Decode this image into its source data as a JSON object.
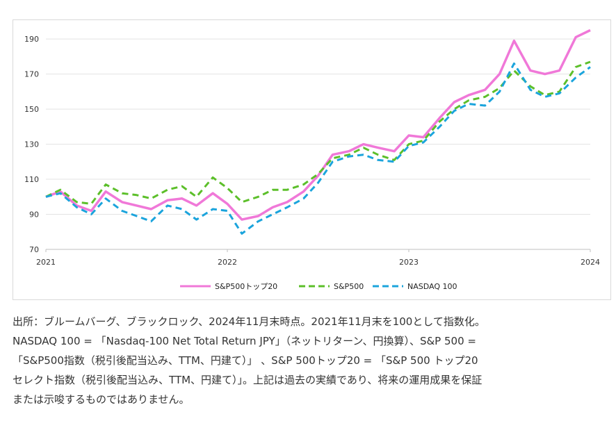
{
  "chart_data": {
    "type": "line",
    "x_ticks": [
      "2021",
      "2022",
      "2023",
      "2024"
    ],
    "y_ticks": [
      70,
      90,
      110,
      130,
      150,
      170,
      190
    ],
    "ylim": [
      70,
      196
    ],
    "xlim": [
      2021.0,
      2024.0
    ],
    "grid": "horizontal",
    "legend_position": "bottom",
    "series": [
      {
        "name": "S&P500トップ20",
        "color": "#f078d8",
        "dash": "solid",
        "x": [
          2021.0,
          2021.08,
          2021.17,
          2021.25,
          2021.33,
          2021.42,
          2021.5,
          2021.58,
          2021.67,
          2021.75,
          2021.83,
          2021.92,
          2022.0,
          2022.08,
          2022.17,
          2022.25,
          2022.33,
          2022.42,
          2022.5,
          2022.58,
          2022.67,
          2022.75,
          2022.83,
          2022.92,
          2023.0,
          2023.08,
          2023.17,
          2023.25,
          2023.33,
          2023.42,
          2023.5,
          2023.58,
          2023.67,
          2023.75,
          2023.83,
          2023.92,
          2024.0
        ],
        "values": [
          100,
          103,
          95,
          92,
          103,
          97,
          95,
          93,
          98,
          99,
          95,
          102,
          96,
          87,
          89,
          94,
          97,
          103,
          112,
          124,
          126,
          130,
          128,
          126,
          135,
          134,
          145,
          154,
          158,
          161,
          170,
          189,
          172,
          170,
          172,
          191,
          195
        ]
      },
      {
        "name": "S&P500",
        "color": "#5cbf2a",
        "dash": "dashed",
        "x": [
          2021.0,
          2021.08,
          2021.17,
          2021.25,
          2021.33,
          2021.42,
          2021.5,
          2021.58,
          2021.67,
          2021.75,
          2021.83,
          2021.92,
          2022.0,
          2022.08,
          2022.17,
          2022.25,
          2022.33,
          2022.42,
          2022.5,
          2022.58,
          2022.67,
          2022.75,
          2022.83,
          2022.92,
          2023.0,
          2023.08,
          2023.17,
          2023.25,
          2023.33,
          2023.42,
          2023.5,
          2023.58,
          2023.67,
          2023.75,
          2023.83,
          2023.92,
          2024.0
        ],
        "values": [
          100,
          104,
          97,
          96,
          107,
          102,
          101,
          99,
          104,
          106,
          100,
          111,
          105,
          97,
          100,
          104,
          104,
          107,
          113,
          122,
          124,
          128,
          124,
          121,
          130,
          132,
          143,
          150,
          155,
          157,
          162,
          172,
          163,
          158,
          160,
          174,
          177
        ]
      },
      {
        "name": "NASDAQ 100",
        "color": "#1ba4dc",
        "dash": "dashed",
        "x": [
          2021.0,
          2021.08,
          2021.17,
          2021.25,
          2021.33,
          2021.42,
          2021.5,
          2021.58,
          2021.67,
          2021.75,
          2021.83,
          2021.92,
          2022.0,
          2022.08,
          2022.17,
          2022.25,
          2022.33,
          2022.42,
          2022.5,
          2022.58,
          2022.67,
          2022.75,
          2022.83,
          2022.92,
          2023.0,
          2023.08,
          2023.17,
          2023.25,
          2023.33,
          2023.42,
          2023.5,
          2023.58,
          2023.67,
          2023.75,
          2023.83,
          2023.92,
          2024.0
        ],
        "values": [
          100,
          102,
          94,
          90,
          99,
          92,
          89,
          86,
          95,
          93,
          87,
          93,
          92,
          79,
          86,
          90,
          94,
          99,
          108,
          120,
          123,
          124,
          121,
          120,
          129,
          131,
          140,
          149,
          153,
          152,
          160,
          176,
          161,
          157,
          159,
          168,
          174
        ]
      }
    ]
  },
  "caption": {
    "lines": [
      "出所：ブルームバーグ、ブラックロック、2024年11月末時点。2021年11月末を100として指数化。",
      "NASDAQ 100 = 「Nasdaq-100 Net Total Return JPY」（ネットリターン、円換算）、S&P 500 =",
      "「S&P500指数（税引後配当込み、TTM、円建て）」 、S&P 500トップ20 = 「S&P 500 トップ20",
      "セレクト指数（税引後配当込み、TTM、円建て）」。上記は過去の実績であり、将来の運用成果を保証",
      "または示唆するものではありません。"
    ]
  }
}
